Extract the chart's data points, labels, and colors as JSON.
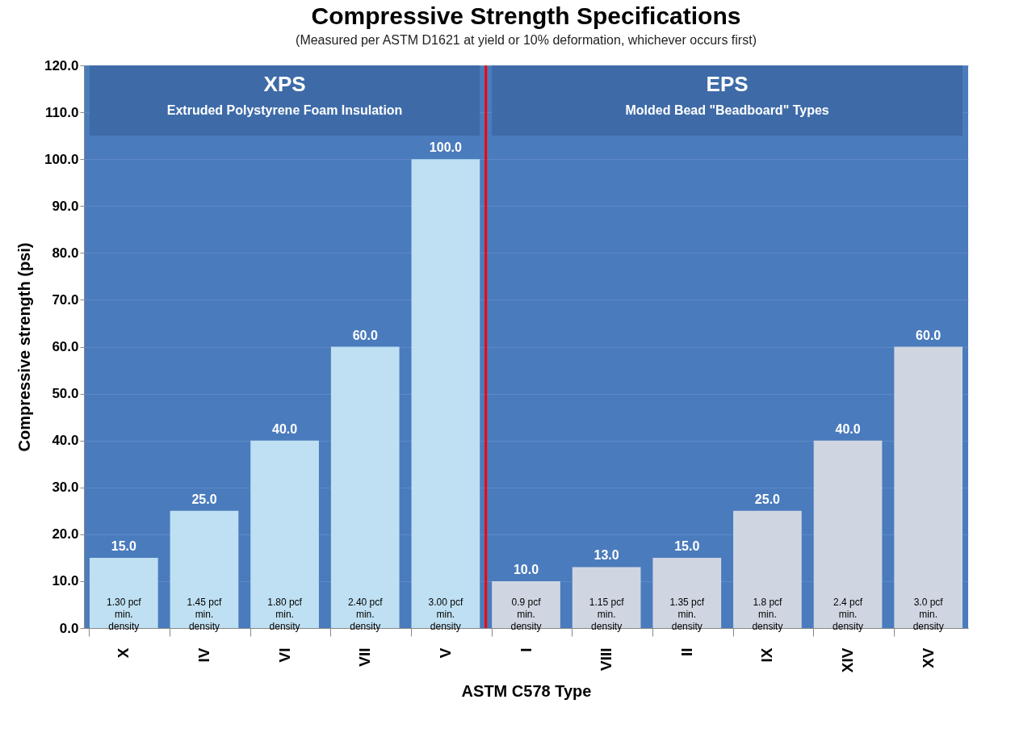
{
  "chart_data": {
    "type": "bar",
    "title": "Compressive Strength Specifications",
    "subtitle": "(Measured per ASTM D1621 at yield or 10% deformation, whichever occurs first)",
    "xlabel": "ASTM C578 Type",
    "ylabel": "Compressive strength (psi)",
    "categories": [
      "X",
      "IV",
      "VI",
      "VII",
      "V",
      "I",
      "VIII",
      "II",
      "IX",
      "XIV",
      "XV"
    ],
    "values": [
      15,
      25,
      40,
      60,
      100,
      10,
      13,
      15,
      25,
      40,
      60
    ],
    "colors": [
      "#bfe0f2",
      "#bfe0f2",
      "#bfe0f2",
      "#bfe0f2",
      "#bfe0f2",
      "#cfd6e1",
      "#cfd6e1",
      "#cfd6e1",
      "#cfd6e1",
      "#cfd6e1",
      "#cfd6e1"
    ],
    "value_labels": [
      "15.0",
      "25.0",
      "40.0",
      "60.0",
      "100.0",
      "10.0",
      "13.0",
      "15.0",
      "25.0",
      "40.0",
      "60.0"
    ],
    "ylim": [
      0,
      120
    ],
    "yticks": [
      {
        "value": 0,
        "label": "0.0"
      },
      {
        "value": 10,
        "label": "10.0"
      },
      {
        "value": 20,
        "label": "20.0"
      },
      {
        "value": 30,
        "label": "30.0"
      },
      {
        "value": 40,
        "label": "40.0"
      },
      {
        "value": 50,
        "label": "50.0"
      },
      {
        "value": 60,
        "label": "60.0"
      },
      {
        "value": 70,
        "label": "70.0"
      },
      {
        "value": 80,
        "label": "80.0"
      },
      {
        "value": 90,
        "label": "90.0"
      },
      {
        "value": 100,
        "label": "100.0"
      },
      {
        "value": 110,
        "label": "110.0"
      },
      {
        "value": 120,
        "label": "120.0"
      }
    ],
    "grid": "y",
    "bands": [
      {
        "axis": "x",
        "from": "X",
        "to": "V",
        "label": "XPS\nExtruded Polystyrene Foam Insulation",
        "color": "#3e6ba8"
      },
      {
        "axis": "x",
        "from": "I",
        "to": "XV",
        "label": "EPS\nMolded Bead  \"Beadboard\" Types",
        "color": "#3e6ba8"
      }
    ],
    "ref_lines": [
      {
        "axis": "x",
        "value": "I",
        "color": "#ff0000"
      }
    ],
    "annotations": [
      "1.30 pcf\nmin.\ndensity",
      "1.45 pcf\nmin.\ndensity",
      "1.80 pcf\nmin.\ndensity",
      "2.40 pcf\nmin.\ndensity",
      "3.00 pcf\nmin.\ndensity",
      "0.9 pcf\nmin.\ndensity",
      "1.15 pcf\nmin.\ndensity",
      "1.35 pcf\nmin.\ndensity",
      "1.8 pcf\nmin.\ndensity",
      "2.4 pcf\nmin.\ndensity",
      "3.0 pcf\nmin.\ndensity"
    ]
  }
}
